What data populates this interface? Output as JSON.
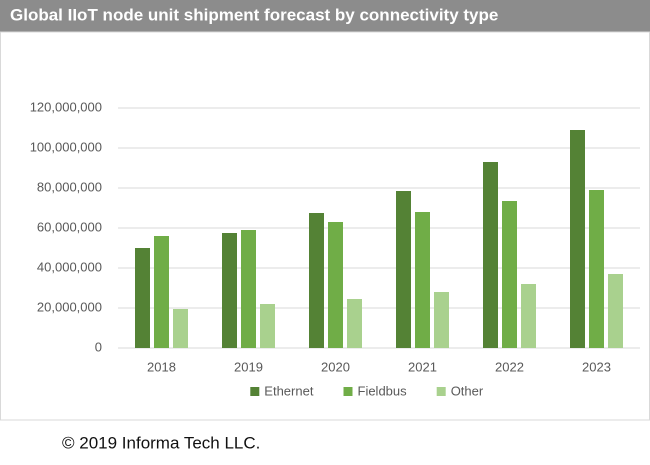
{
  "chart_data": {
    "type": "bar",
    "title": "Global IIoT node unit shipment forecast by connectivity type",
    "categories": [
      "2018",
      "2019",
      "2020",
      "2021",
      "2022",
      "2023"
    ],
    "series": [
      {
        "name": "Ethernet",
        "color": "#548235",
        "values": [
          50000000,
          57500000,
          67500000,
          78500000,
          93000000,
          109000000
        ]
      },
      {
        "name": "Fieldbus",
        "color": "#70ad47",
        "values": [
          56000000,
          59000000,
          63000000,
          68000000,
          73500000,
          79000000
        ]
      },
      {
        "name": "Other",
        "color": "#a9d18e",
        "values": [
          19500000,
          22000000,
          24500000,
          28000000,
          32000000,
          37000000
        ]
      }
    ],
    "ylim": [
      0,
      120000000
    ],
    "yticks": [
      0,
      {
        "value": 20000000,
        "label": "20,000,000"
      },
      {
        "value": 40000000,
        "label": "40,000,000"
      },
      {
        "value": 60000000,
        "label": "60,000,000"
      },
      {
        "value": 80000000,
        "label": "80,000,000"
      },
      {
        "value": 100000000,
        "label": "100,000,000"
      },
      {
        "value": 120000000,
        "label": "120,000,000"
      }
    ],
    "grid": true,
    "legend": "bottom",
    "source": "© 2019 Informa Tech LLC."
  }
}
